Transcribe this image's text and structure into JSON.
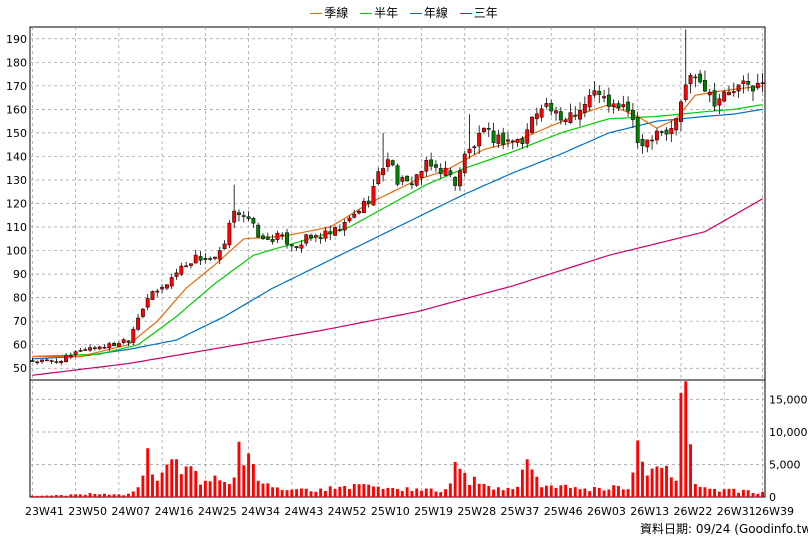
{
  "legend": {
    "quarter": "季線",
    "half": "半年",
    "year": "年線",
    "three": "三年",
    "quarter_color": "#e46c0a",
    "half_color": "#00cc00",
    "year_color": "#0070c0",
    "three_color": "#cc0066"
  },
  "footer": {
    "date_label": "資料日期: 09/24",
    "source": "(Goodinfo.tw)"
  },
  "colors": {
    "up": "#ff0000",
    "down": "#008000",
    "volume": "#ff0000"
  },
  "chart_data": {
    "type": "candlestick",
    "price_axis": {
      "ylim": [
        45,
        195
      ],
      "ticks": [
        50,
        60,
        70,
        80,
        90,
        100,
        110,
        120,
        130,
        140,
        150,
        160,
        170,
        180,
        190
      ]
    },
    "volume_axis": {
      "ylim": [
        0,
        18000
      ],
      "ticks": [
        0,
        5000,
        10000,
        15000
      ],
      "tick_labels": [
        "0",
        "5,000",
        "10,000",
        "15,000"
      ]
    },
    "x_tick_labels": [
      {
        "index": 0,
        "label": "23W41"
      },
      {
        "index": 9,
        "label": "23W50"
      },
      {
        "index": 18,
        "label": "24W07"
      },
      {
        "index": 27,
        "label": "24W16"
      },
      {
        "index": 36,
        "label": "24W25"
      },
      {
        "index": 45,
        "label": "24W34"
      },
      {
        "index": 54,
        "label": "24W43"
      },
      {
        "index": 63,
        "label": "24W52"
      },
      {
        "index": 72,
        "label": "25W10"
      },
      {
        "index": 81,
        "label": "25W19"
      },
      {
        "index": 90,
        "label": "25W28"
      },
      {
        "index": 99,
        "label": "25W37"
      },
      {
        "index": 108,
        "label": "25W46"
      },
      {
        "index": 117,
        "label": "26W03"
      },
      {
        "index": 126,
        "label": "26W13"
      },
      {
        "index": 135,
        "label": "26W22"
      },
      {
        "index": 144,
        "label": "26W31"
      },
      {
        "index": 152,
        "label": "26W39"
      }
    ],
    "n_periods": 153,
    "close_series": [
      [
        0,
        53
      ],
      [
        5,
        53
      ],
      [
        8,
        55
      ],
      [
        10,
        58
      ],
      [
        13,
        59
      ],
      [
        17,
        60
      ],
      [
        19,
        62
      ],
      [
        20,
        62
      ],
      [
        22,
        72
      ],
      [
        24,
        80
      ],
      [
        27,
        84
      ],
      [
        31,
        93
      ],
      [
        34,
        97
      ],
      [
        38,
        96
      ],
      [
        40,
        102
      ],
      [
        42,
        118
      ],
      [
        44,
        115
      ],
      [
        46,
        110
      ],
      [
        48,
        104
      ],
      [
        51,
        106
      ],
      [
        55,
        102
      ],
      [
        57,
        105
      ],
      [
        62,
        107
      ],
      [
        64,
        109
      ],
      [
        66,
        113
      ],
      [
        70,
        122
      ],
      [
        72,
        132
      ],
      [
        74,
        140
      ],
      [
        76,
        130
      ],
      [
        78,
        128
      ],
      [
        80,
        132
      ],
      [
        82,
        136
      ],
      [
        86,
        134
      ],
      [
        88,
        129
      ],
      [
        90,
        140
      ],
      [
        94,
        150
      ],
      [
        96,
        148
      ],
      [
        98,
        147
      ],
      [
        100,
        147
      ],
      [
        102,
        146
      ],
      [
        104,
        156
      ],
      [
        106,
        163
      ],
      [
        108,
        160
      ],
      [
        110,
        154
      ],
      [
        112,
        159
      ],
      [
        114,
        160
      ],
      [
        116,
        165
      ],
      [
        118,
        168
      ],
      [
        120,
        160
      ],
      [
        122,
        162
      ],
      [
        124,
        160
      ],
      [
        126,
        146
      ],
      [
        128,
        147
      ],
      [
        130,
        152
      ],
      [
        132,
        150
      ],
      [
        134,
        155
      ],
      [
        136,
        171
      ],
      [
        138,
        176
      ],
      [
        140,
        170
      ],
      [
        142,
        164
      ],
      [
        144,
        166
      ],
      [
        146,
        168
      ],
      [
        148,
        170
      ],
      [
        150,
        170
      ],
      [
        152,
        170
      ]
    ],
    "spikes": [
      [
        42,
        128
      ],
      [
        73,
        150
      ],
      [
        76,
        113
      ],
      [
        91,
        158
      ],
      [
        117,
        172
      ],
      [
        136,
        194
      ],
      [
        139,
        176
      ]
    ],
    "ma_quarter": [
      [
        0,
        55
      ],
      [
        10,
        55
      ],
      [
        20,
        60
      ],
      [
        26,
        70
      ],
      [
        32,
        84
      ],
      [
        38,
        94
      ],
      [
        44,
        105
      ],
      [
        52,
        106
      ],
      [
        62,
        110
      ],
      [
        70,
        120
      ],
      [
        80,
        130
      ],
      [
        86,
        134
      ],
      [
        94,
        143
      ],
      [
        100,
        146
      ],
      [
        108,
        153
      ],
      [
        114,
        158
      ],
      [
        120,
        162
      ],
      [
        126,
        157
      ],
      [
        130,
        152
      ],
      [
        134,
        156
      ],
      [
        138,
        166
      ],
      [
        144,
        168
      ],
      [
        152,
        170
      ]
    ],
    "ma_half": [
      [
        0,
        55
      ],
      [
        14,
        56
      ],
      [
        22,
        60
      ],
      [
        30,
        72
      ],
      [
        38,
        86
      ],
      [
        46,
        98
      ],
      [
        56,
        104
      ],
      [
        66,
        110
      ],
      [
        74,
        119
      ],
      [
        82,
        128
      ],
      [
        90,
        135
      ],
      [
        100,
        142
      ],
      [
        110,
        150
      ],
      [
        120,
        156
      ],
      [
        130,
        157
      ],
      [
        140,
        159
      ],
      [
        146,
        160
      ],
      [
        152,
        162
      ]
    ],
    "ma_year": [
      [
        0,
        54
      ],
      [
        10,
        55
      ],
      [
        20,
        58
      ],
      [
        30,
        62
      ],
      [
        40,
        72
      ],
      [
        50,
        84
      ],
      [
        60,
        94
      ],
      [
        70,
        104
      ],
      [
        80,
        114
      ],
      [
        90,
        124
      ],
      [
        100,
        133
      ],
      [
        110,
        141
      ],
      [
        120,
        150
      ],
      [
        130,
        155
      ],
      [
        140,
        157
      ],
      [
        146,
        158
      ],
      [
        152,
        160
      ]
    ],
    "ma_three": [
      [
        0,
        47
      ],
      [
        20,
        52
      ],
      [
        40,
        59
      ],
      [
        60,
        66
      ],
      [
        80,
        74
      ],
      [
        100,
        85
      ],
      [
        120,
        98
      ],
      [
        140,
        108
      ],
      [
        152,
        122
      ]
    ],
    "volume": [
      [
        0,
        200
      ],
      [
        2,
        200
      ],
      [
        6,
        300
      ],
      [
        8,
        400
      ],
      [
        12,
        600
      ],
      [
        15,
        500
      ],
      [
        18,
        400
      ],
      [
        20,
        500
      ],
      [
        22,
        1500
      ],
      [
        24,
        7500
      ],
      [
        26,
        2500
      ],
      [
        28,
        5000
      ],
      [
        30,
        5800
      ],
      [
        32,
        4700
      ],
      [
        34,
        4000
      ],
      [
        36,
        2500
      ],
      [
        38,
        3300
      ],
      [
        40,
        2300
      ],
      [
        42,
        3000
      ],
      [
        43,
        8500
      ],
      [
        45,
        6700
      ],
      [
        47,
        2500
      ],
      [
        50,
        1500
      ],
      [
        55,
        1200
      ],
      [
        60,
        1300
      ],
      [
        65,
        1700
      ],
      [
        70,
        1900
      ],
      [
        74,
        1400
      ],
      [
        78,
        1500
      ],
      [
        82,
        1300
      ],
      [
        86,
        1200
      ],
      [
        88,
        5400
      ],
      [
        90,
        3700
      ],
      [
        94,
        2000
      ],
      [
        97,
        1500
      ],
      [
        100,
        1200
      ],
      [
        103,
        5800
      ],
      [
        106,
        1500
      ],
      [
        110,
        1800
      ],
      [
        114,
        1200
      ],
      [
        118,
        1400
      ],
      [
        122,
        1700
      ],
      [
        124,
        1200
      ],
      [
        126,
        8700
      ],
      [
        128,
        3300
      ],
      [
        130,
        4700
      ],
      [
        132,
        4800
      ],
      [
        134,
        2500
      ],
      [
        135,
        16000
      ],
      [
        136,
        17800
      ],
      [
        138,
        2000
      ],
      [
        140,
        1500
      ],
      [
        144,
        1200
      ],
      [
        148,
        1100
      ],
      [
        152,
        800
      ]
    ]
  }
}
